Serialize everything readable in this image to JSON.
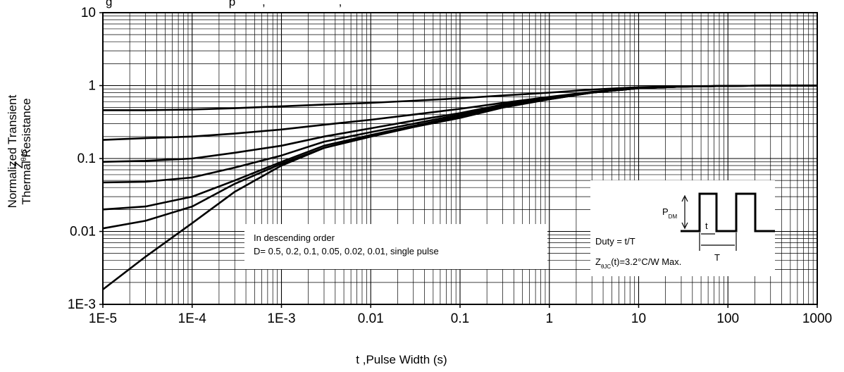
{
  "page": {
    "title_partial": "g                                   p        ,                      ,"
  },
  "chart_data": {
    "type": "line",
    "title": "",
    "xlabel": "t ,Pulse Width (s)",
    "ylabel": {
      "symbol": "Z",
      "subscript": "θJC",
      "line1": "Normalized Transient",
      "line2": "Thermal Resistance"
    },
    "xscale": "log",
    "yscale": "log",
    "xlim": [
      1e-05,
      1000
    ],
    "ylim": [
      0.001,
      10
    ],
    "x_ticks": [
      {
        "value": 1e-05,
        "label": "1E-5"
      },
      {
        "value": 0.0001,
        "label": "1E-4"
      },
      {
        "value": 0.001,
        "label": "1E-3"
      },
      {
        "value": 0.01,
        "label": "0.01"
      },
      {
        "value": 0.1,
        "label": "0.1"
      },
      {
        "value": 1,
        "label": "1"
      },
      {
        "value": 10,
        "label": "10"
      },
      {
        "value": 100,
        "label": "100"
      },
      {
        "value": 1000,
        "label": "1000"
      }
    ],
    "y_ticks": [
      {
        "value": 0.001,
        "label": "1E-3"
      },
      {
        "value": 0.01,
        "label": "0.01"
      },
      {
        "value": 0.1,
        "label": "0.1"
      },
      {
        "value": 1,
        "label": "1"
      },
      {
        "value": 10,
        "label": "10"
      }
    ],
    "grid": true,
    "series": [
      {
        "x": [
          1e-05,
          3e-05,
          0.0001,
          0.0003,
          0.001,
          0.003,
          0.01,
          0.03,
          0.1,
          0.3,
          1,
          3,
          10,
          30,
          100,
          300,
          1000
        ],
        "y": [
          0.46,
          0.46,
          0.47,
          0.49,
          0.52,
          0.55,
          0.58,
          0.62,
          0.67,
          0.73,
          0.8,
          0.88,
          0.95,
          0.98,
          0.99,
          1.0,
          1.0
        ]
      },
      {
        "x": [
          1e-05,
          3e-05,
          0.0001,
          0.0003,
          0.001,
          0.003,
          0.01,
          0.03,
          0.1,
          0.3,
          1,
          3,
          10,
          30,
          100,
          300,
          1000
        ],
        "y": [
          0.18,
          0.19,
          0.2,
          0.22,
          0.25,
          0.29,
          0.34,
          0.4,
          0.48,
          0.58,
          0.7,
          0.82,
          0.93,
          0.97,
          0.99,
          1.0,
          1.0
        ]
      },
      {
        "x": [
          1e-05,
          3e-05,
          0.0001,
          0.0003,
          0.001,
          0.003,
          0.01,
          0.03,
          0.1,
          0.3,
          1,
          3,
          10,
          30,
          100,
          300,
          1000
        ],
        "y": [
          0.09,
          0.093,
          0.1,
          0.12,
          0.15,
          0.2,
          0.26,
          0.33,
          0.42,
          0.55,
          0.68,
          0.81,
          0.92,
          0.97,
          0.99,
          1.0,
          1.0
        ]
      },
      {
        "x": [
          1e-05,
          3e-05,
          0.0001,
          0.0003,
          0.001,
          0.003,
          0.01,
          0.03,
          0.1,
          0.3,
          1,
          3,
          10,
          30,
          100,
          300,
          1000
        ],
        "y": [
          0.047,
          0.048,
          0.055,
          0.075,
          0.11,
          0.17,
          0.23,
          0.3,
          0.4,
          0.53,
          0.67,
          0.8,
          0.92,
          0.97,
          0.99,
          1.0,
          1.0
        ]
      },
      {
        "x": [
          1e-05,
          3e-05,
          0.0001,
          0.0003,
          0.001,
          0.003,
          0.01,
          0.03,
          0.1,
          0.3,
          1,
          3,
          10,
          30,
          100,
          300,
          1000
        ],
        "y": [
          0.02,
          0.022,
          0.03,
          0.05,
          0.09,
          0.15,
          0.21,
          0.28,
          0.38,
          0.52,
          0.66,
          0.8,
          0.92,
          0.97,
          0.99,
          1.0,
          1.0
        ]
      },
      {
        "x": [
          1e-05,
          3e-05,
          0.0001,
          0.0003,
          0.001,
          0.003,
          0.01,
          0.03,
          0.1,
          0.3,
          1,
          3,
          10,
          30,
          100,
          300,
          1000
        ],
        "y": [
          0.011,
          0.014,
          0.022,
          0.045,
          0.085,
          0.14,
          0.2,
          0.27,
          0.37,
          0.51,
          0.65,
          0.8,
          0.92,
          0.97,
          0.99,
          1.0,
          1.0
        ]
      },
      {
        "x": [
          1e-05,
          3e-05,
          0.0001,
          0.0003,
          0.001,
          0.003,
          0.01,
          0.03,
          0.1,
          0.3,
          1,
          3,
          10,
          30,
          100,
          300,
          1000
        ],
        "y": [
          0.0016,
          0.0045,
          0.013,
          0.035,
          0.08,
          0.14,
          0.2,
          0.27,
          0.36,
          0.5,
          0.65,
          0.8,
          0.92,
          0.97,
          0.99,
          1.0,
          1.0
        ]
      }
    ],
    "annotations": {
      "order_note": {
        "line1": "In descending order",
        "line2": "D= 0.5, 0.2, 0.1, 0.05, 0.02, 0.01, single pulse"
      },
      "duty_box": {
        "duty": "Duty = t/T",
        "z_prefix": "Z",
        "z_sub": "θJC",
        "z_suffix": "(t)=3.2°C/W Max.",
        "p": "P",
        "p_sub": "DM",
        "t_small": "t",
        "t_big": "T"
      }
    }
  }
}
